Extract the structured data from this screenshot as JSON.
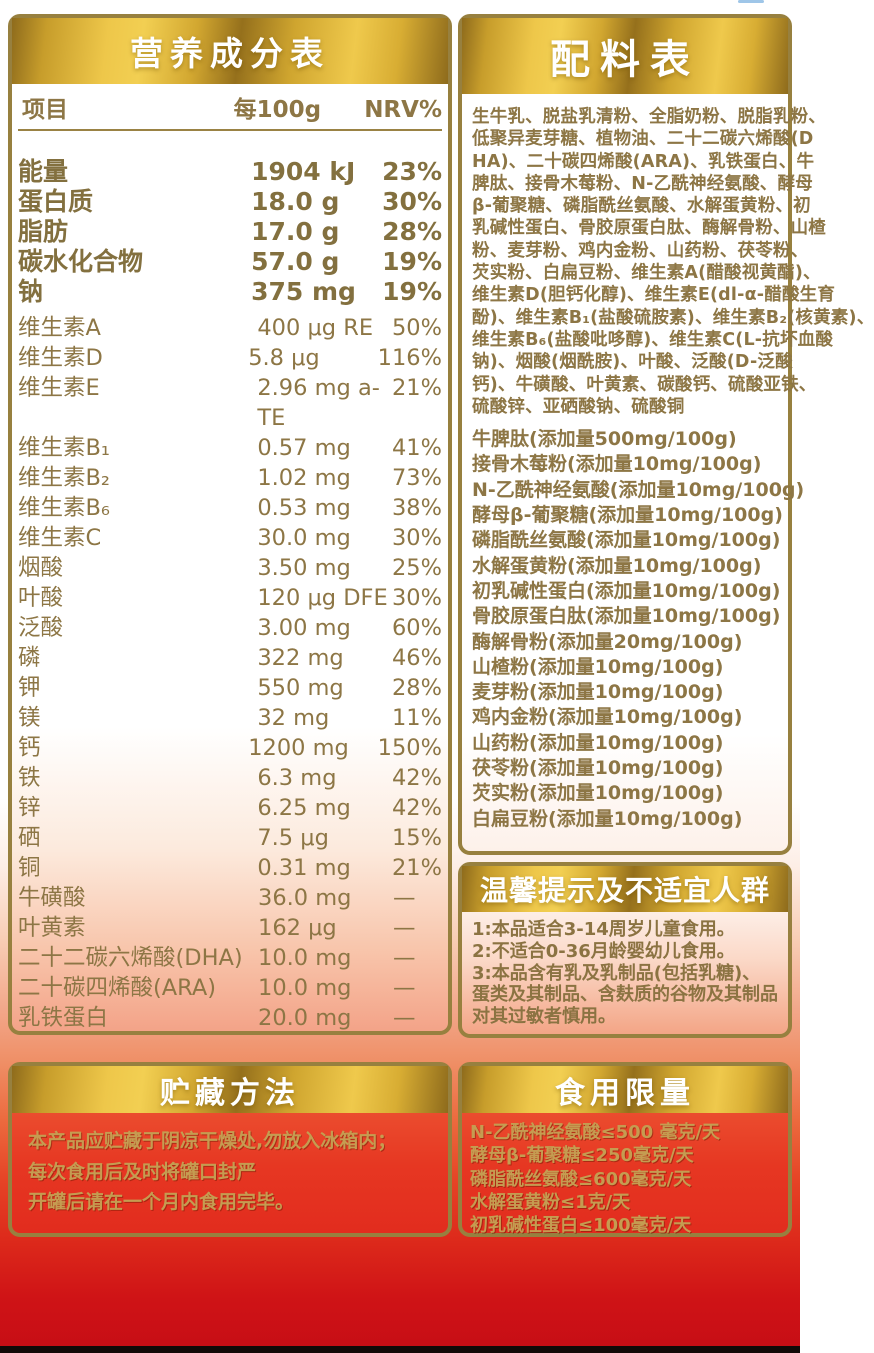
{
  "colors": {
    "banner_gold": "#eec74a",
    "border_gold": "#97803f",
    "text_gold": "#8d7645",
    "body_gold_on_red": "#c59c51",
    "red_background": "#e63722",
    "deep_red": "#c60d15"
  },
  "nutrition_table": {
    "title": "营养成分表",
    "columns": {
      "item": "项目",
      "per100g": "每100g",
      "nrv": "NRV%"
    },
    "rows": [
      {
        "name": "能量",
        "amount": "1904 kJ",
        "nrv": "23%",
        "bold": true
      },
      {
        "name": "蛋白质",
        "amount": "18.0 g",
        "nrv": "30%",
        "bold": true
      },
      {
        "name": "脂肪",
        "amount": "17.0 g",
        "nrv": "28%",
        "bold": true
      },
      {
        "name": "碳水化合物",
        "amount": "57.0 g",
        "nrv": "19%",
        "bold": true
      },
      {
        "name": "钠",
        "amount": "375 mg",
        "nrv": "19%",
        "bold": true
      },
      {
        "name": "维生素A",
        "amount": "400 μg RE",
        "nrv": "50%",
        "gap": true
      },
      {
        "name": "维生素D",
        "amount": "5.8 μg",
        "nrv": "116%"
      },
      {
        "name": "维生素E",
        "amount": "2.96 mg a-TE",
        "nrv": "21%"
      },
      {
        "name": "维生素B₁",
        "amount": "0.57 mg",
        "nrv": "41%"
      },
      {
        "name": "维生素B₂",
        "amount": "1.02 mg",
        "nrv": "73%"
      },
      {
        "name": "维生素B₆",
        "amount": "0.53 mg",
        "nrv": "38%"
      },
      {
        "name": "维生素C",
        "amount": "30.0 mg",
        "nrv": "30%"
      },
      {
        "name": "烟酸",
        "amount": "3.50 mg",
        "nrv": "25%"
      },
      {
        "name": "叶酸",
        "amount": "120 μg DFE",
        "nrv": "30%"
      },
      {
        "name": "泛酸",
        "amount": "3.00 mg",
        "nrv": "60%"
      },
      {
        "name": "磷",
        "amount": "322 mg",
        "nrv": "46%"
      },
      {
        "name": "钾",
        "amount": "550 mg",
        "nrv": "28%"
      },
      {
        "name": "镁",
        "amount": "32 mg",
        "nrv": "11%"
      },
      {
        "name": "钙",
        "amount": "1200 mg",
        "nrv": "150%"
      },
      {
        "name": "铁",
        "amount": "6.3 mg",
        "nrv": "42%"
      },
      {
        "name": "锌",
        "amount": "6.25 mg",
        "nrv": "42%"
      },
      {
        "name": "硒",
        "amount": "7.5 μg",
        "nrv": "15%"
      },
      {
        "name": "铜",
        "amount": "0.31 mg",
        "nrv": "21%"
      },
      {
        "name": "牛磺酸",
        "amount": "36.0 mg",
        "nrv": "—"
      },
      {
        "name": "叶黄素",
        "amount": "162 μg",
        "nrv": "—"
      },
      {
        "name": "二十二碳六烯酸(DHA)",
        "amount": "10.0 mg",
        "nrv": "—"
      },
      {
        "name": "二十碳四烯酸(ARA)",
        "amount": "10.0 mg",
        "nrv": "—"
      },
      {
        "name": "乳铁蛋白",
        "amount": "20.0 mg",
        "nrv": "—"
      }
    ]
  },
  "ingredients": {
    "title": "配料表",
    "lines": [
      "生牛乳、脱盐乳清粉、全脂奶粉、脱脂乳粉、",
      "低聚异麦芽糖、植物油、二十二碳六烯酸(D",
      "HA)、二十碳四烯酸(ARA)、乳铁蛋白、牛",
      "脾肽、接骨木莓粉、N-乙酰神经氨酸、酵母",
      "β-葡聚糖、磷脂酰丝氨酸、水解蛋黄粉、初",
      "乳碱性蛋白、骨胶原蛋白肽、酶解骨粉、山楂",
      "粉、麦芽粉、鸡内金粉、山药粉、茯苓粉、",
      "芡实粉、白扁豆粉、维生素A(醋酸视黄酯)、",
      "维生素D(胆钙化醇)、维生素E(dl-α-醋酸生育",
      "酚)、维生素B₁(盐酸硫胺素)、维生素B₂(核黄素)、",
      "维生素B₆(盐酸吡哆醇)、维生素C(L-抗坏血酸",
      "钠)、烟酸(烟酰胺)、叶酸、泛酸(D-泛酸",
      "钙)、牛磺酸、叶黄素、碳酸钙、硫酸亚铁、",
      "硫酸锌、亚硒酸钠、硫酸铜"
    ],
    "additive_lines": [
      "牛脾肽(添加量500mg/100g)",
      "接骨木莓粉(添加量10mg/100g)",
      "N-乙酰神经氨酸(添加量10mg/100g)",
      "酵母β-葡聚糖(添加量10mg/100g)",
      "磷脂酰丝氨酸(添加量10mg/100g)",
      "水解蛋黄粉(添加量10mg/100g)",
      "初乳碱性蛋白(添加量10mg/100g)",
      "骨胶原蛋白肽(添加量10mg/100g)",
      "酶解骨粉(添加量20mg/100g)",
      "山楂粉(添加量10mg/100g)",
      "麦芽粉(添加量10mg/100g)",
      "鸡内金粉(添加量10mg/100g)",
      "山药粉(添加量10mg/100g)",
      "茯苓粉(添加量10mg/100g)",
      "芡实粉(添加量10mg/100g)",
      "白扁豆粉(添加量10mg/100g)"
    ]
  },
  "tips": {
    "title": "温馨提示及不适宜人群",
    "lines": [
      "1:本品适合3-14周岁儿童食用。",
      "2:不适合0-36月龄婴幼儿食用。",
      "3:本品含有乳及乳制品(包括乳糖)、",
      "蛋类及其制品、含麸质的谷物及其制品",
      "对其过敏者慎用。"
    ]
  },
  "storage": {
    "title": "贮藏方法",
    "lines": [
      "本产品应贮藏于阴凉干燥处,勿放入冰箱内；",
      "每次食用后及时将罐口封严",
      "开罐后请在一个月内食用完毕。"
    ]
  },
  "limits": {
    "title": "食用限量",
    "lines": [
      "N-乙酰神经氨酸≤500 毫克/天",
      "酵母β-葡聚糖≤250毫克/天",
      "磷脂酰丝氨酸≤600毫克/天",
      "水解蛋黄粉≤1克/天",
      "初乳碱性蛋白≤100毫克/天"
    ]
  }
}
